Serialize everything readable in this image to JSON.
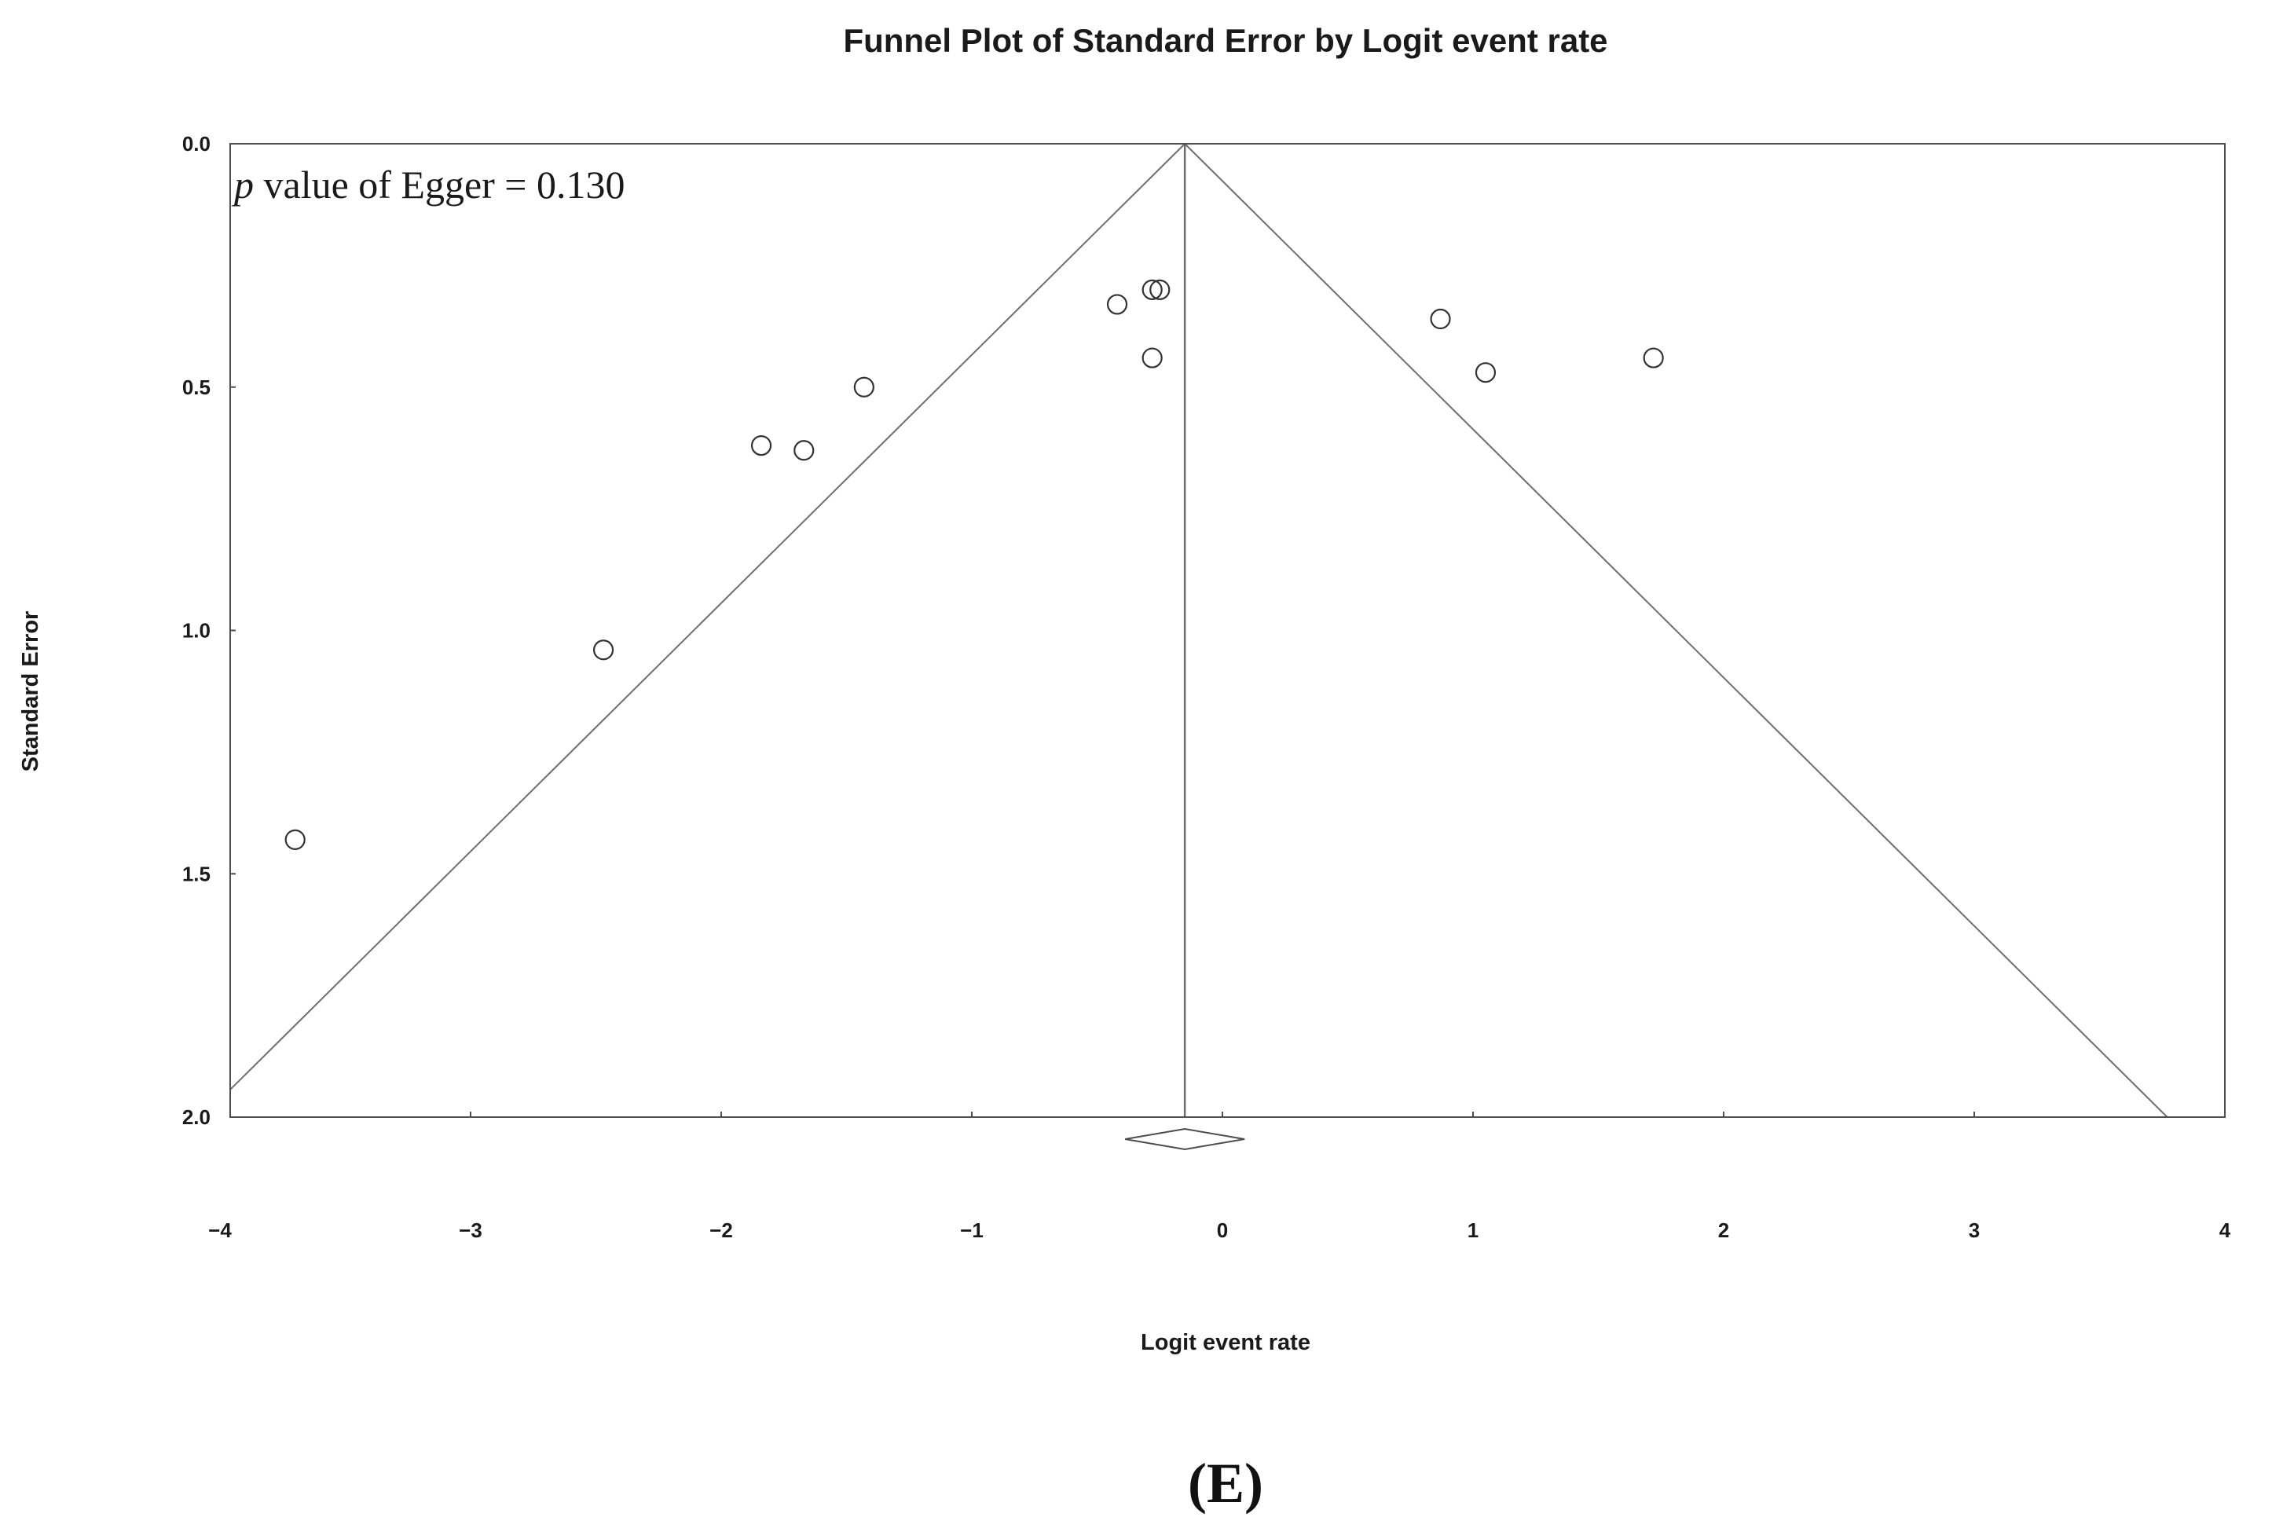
{
  "panel_label": "(E)",
  "annotation": {
    "p_symbol": "p",
    "text": " value of Egger = 0.130"
  },
  "chart_data": {
    "type": "scatter",
    "title": "Funnel Plot of Standard Error by Logit event rate",
    "xlabel": "Logit event rate",
    "ylabel": "Standard Error",
    "xlim": [
      -4,
      4
    ],
    "ylim": [
      0,
      2
    ],
    "y_inverted": true,
    "xticks": [
      "−4",
      "−3",
      "−2",
      "−1",
      "0",
      "1",
      "2",
      "3",
      "4"
    ],
    "xtick_values": [
      -4,
      -3,
      -2,
      -1,
      0,
      1,
      2,
      3,
      4
    ],
    "yticks": [
      "0.0",
      "0.5",
      "1.0",
      "1.5",
      "2.0"
    ],
    "ytick_values": [
      0,
      0.5,
      1.0,
      1.5,
      2.0
    ],
    "grid": false,
    "pooled_estimate": -0.15,
    "funnel_multiplier": 1.96,
    "marker": "open-circle",
    "points": [
      {
        "x": -3.7,
        "y": 1.43
      },
      {
        "x": -2.47,
        "y": 1.04
      },
      {
        "x": -1.84,
        "y": 0.62
      },
      {
        "x": -1.67,
        "y": 0.63
      },
      {
        "x": -1.43,
        "y": 0.5
      },
      {
        "x": -0.42,
        "y": 0.33
      },
      {
        "x": -0.28,
        "y": 0.3
      },
      {
        "x": -0.25,
        "y": 0.3
      },
      {
        "x": -0.28,
        "y": 0.44
      },
      {
        "x": 0.87,
        "y": 0.36
      },
      {
        "x": 1.05,
        "y": 0.47
      },
      {
        "x": 1.72,
        "y": 0.44
      }
    ],
    "colors": {
      "axis": "#4d4d4d",
      "funnel": "#6e6e6e",
      "marker": "#333333"
    }
  }
}
